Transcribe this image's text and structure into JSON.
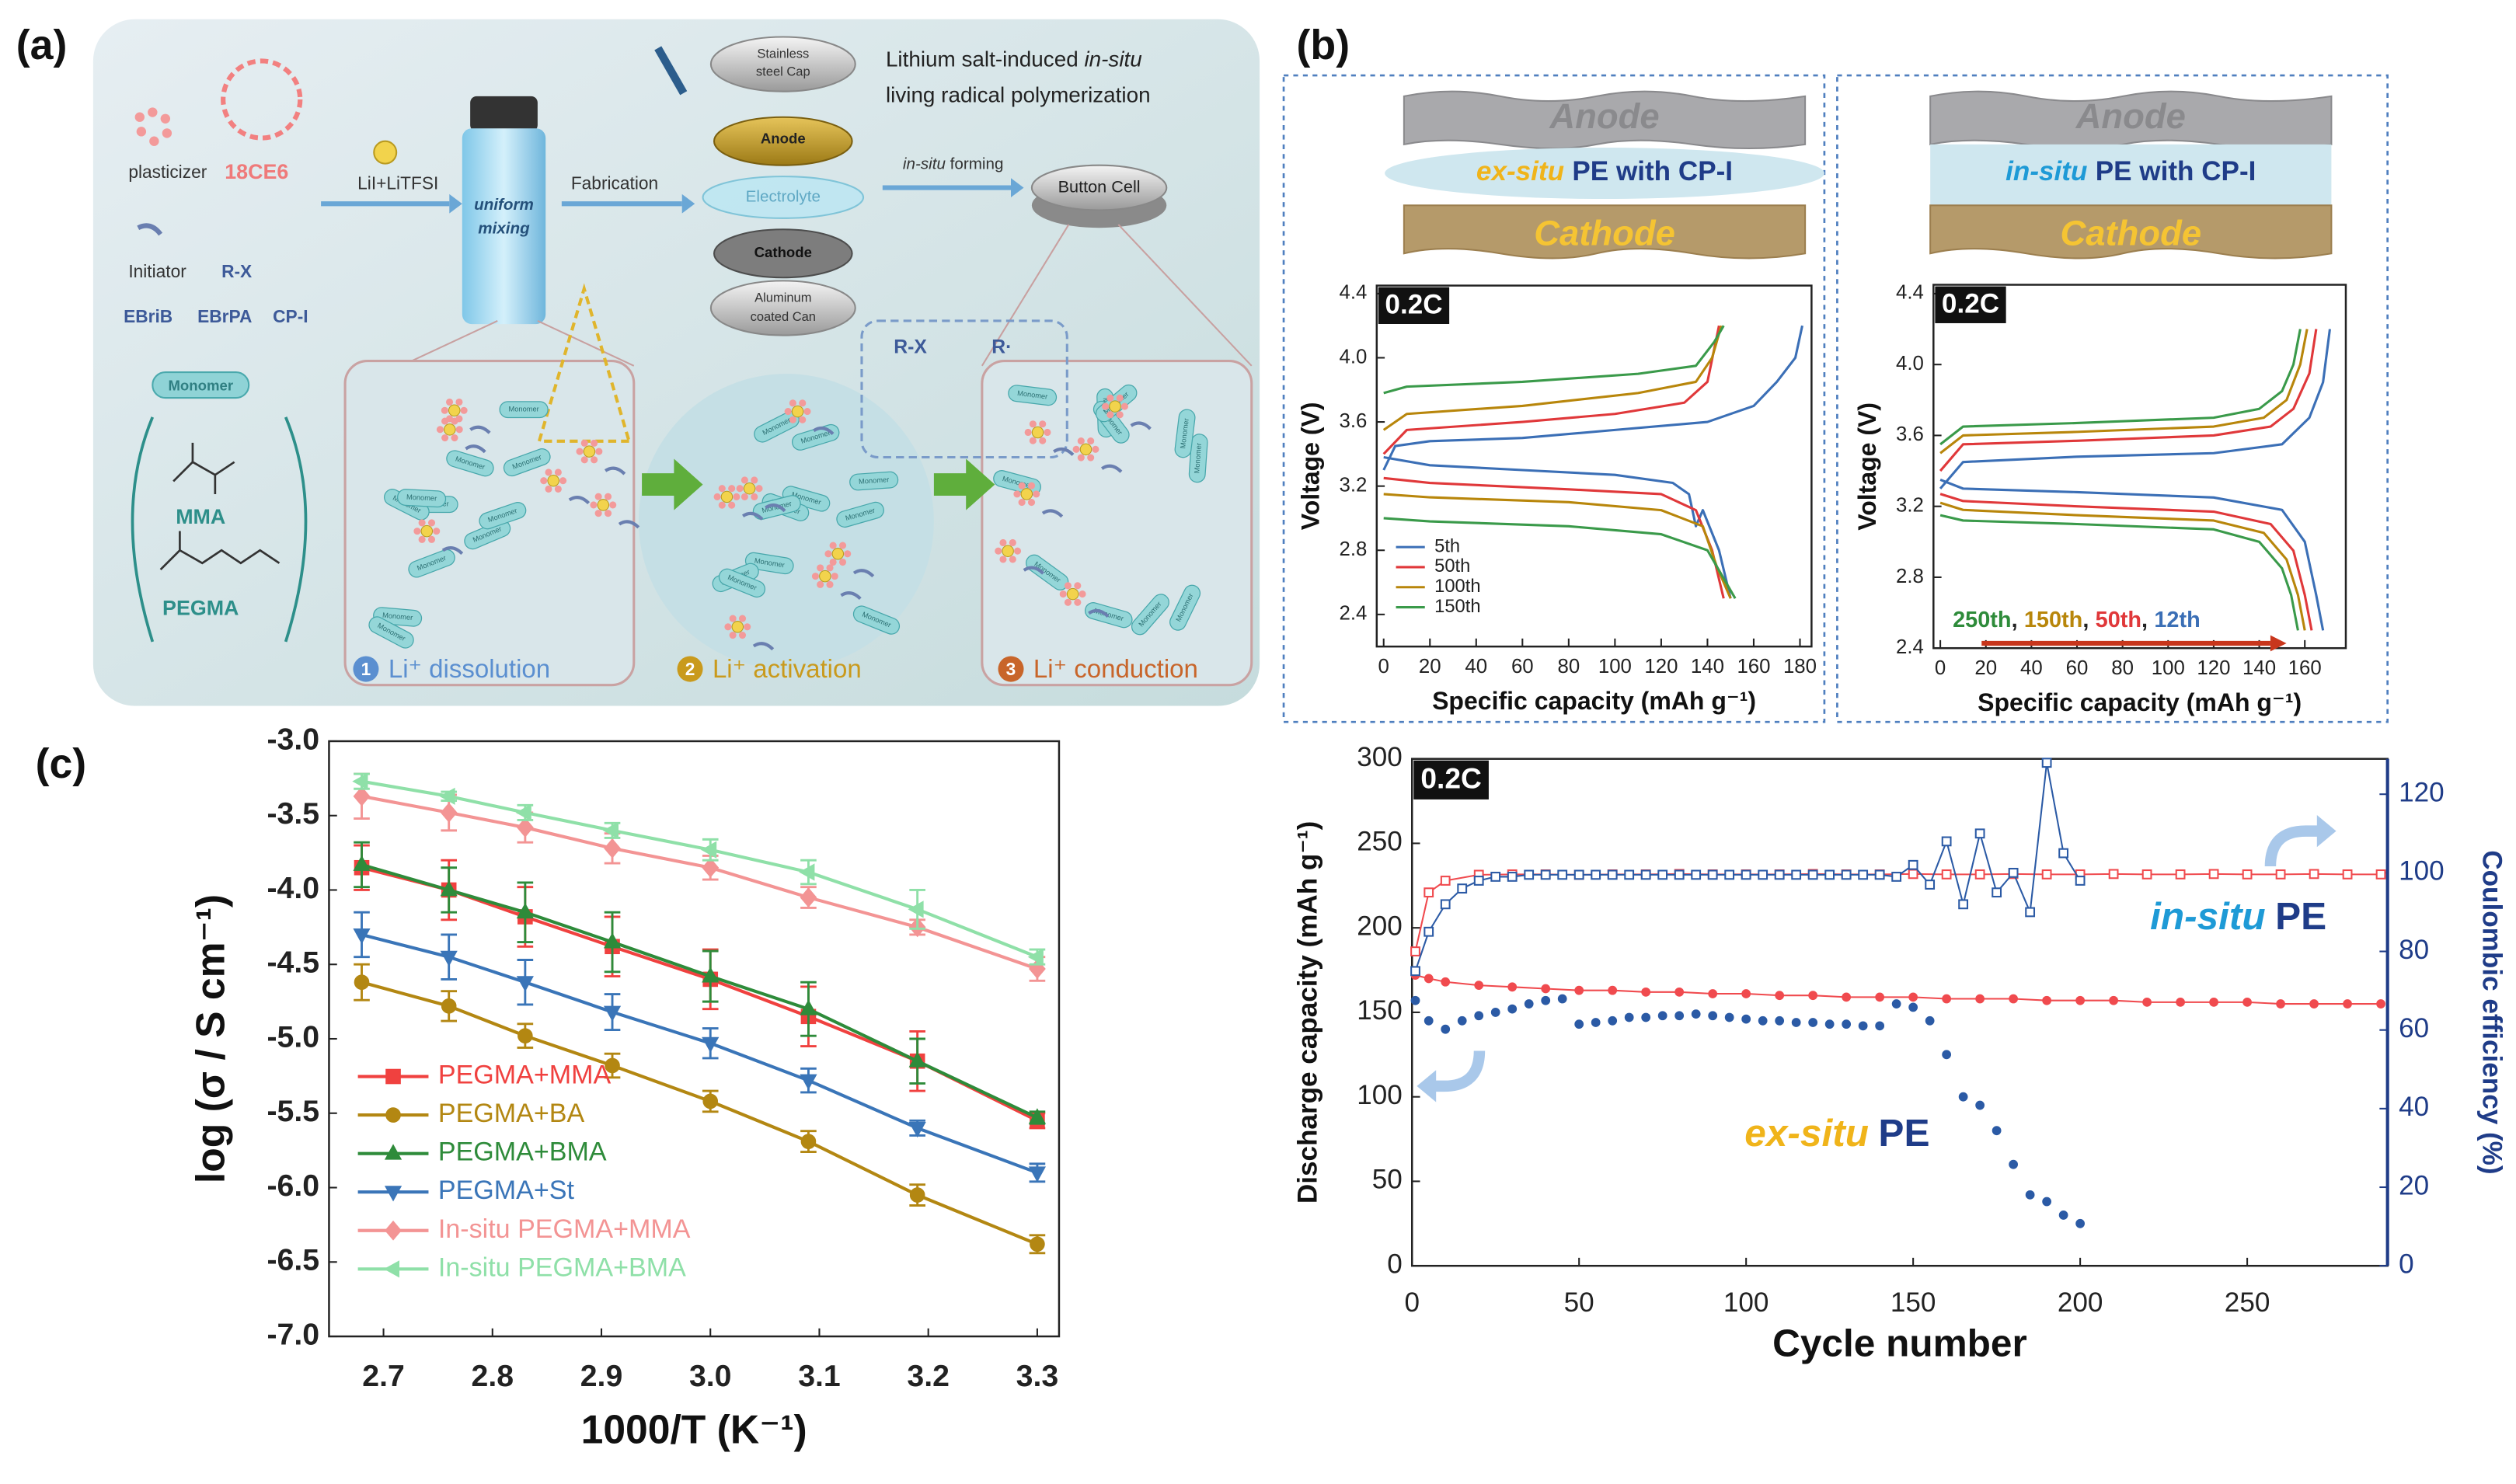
{
  "panel_labels": [
    "(a)",
    "(b)",
    "(c)"
  ],
  "schematic": {
    "plasticizer": "plasticizer",
    "crown_ether": "18CE6",
    "initiator": "Initiator",
    "initiator_formula": "R-X",
    "initiators": [
      "EBriB",
      "EBrPA",
      "CP-I"
    ],
    "monomer": "Monomer",
    "mma": "MMA",
    "pegma": "PEGMA",
    "lithium_salt": "LiI+LiTFSI",
    "mixing": [
      "uniform",
      "mixing"
    ],
    "fabrication": "Fabrication",
    "cap": [
      "Stainless",
      "steel Cap"
    ],
    "anode": "Anode",
    "electrolyte": "Electrolyte",
    "cathode": "Cathode",
    "can": [
      "Aluminum",
      "coated Can"
    ],
    "title": [
      "Lithium salt-induced",
      "in-situ",
      "living radical polymerization"
    ],
    "forming": [
      "in-situ",
      "forming"
    ],
    "button_cell": "Button Cell",
    "activation_rx": "R-X",
    "radical": "R·",
    "steps": [
      {
        "number": "1",
        "label": "Li⁺ dissolution"
      },
      {
        "number": "2",
        "label": "Li⁺ activation"
      },
      {
        "number": "3",
        "label": "Li⁺ conduction"
      }
    ]
  },
  "chart_data": [
    {
      "type": "line",
      "badge": "0.2C",
      "xlabel": "Specific capacity (mAh g⁻¹)",
      "ylabel": "Voltage (V)",
      "graphic": {
        "anode": "Anode",
        "electrolyte": [
          "ex-situ",
          "PE with CP-I"
        ],
        "cathode": "Cathode",
        "in_situ": false
      },
      "xlim": [
        -3,
        185
      ],
      "ylim": [
        2.2,
        4.45
      ],
      "xticks": [
        0,
        20,
        40,
        60,
        80,
        100,
        120,
        140,
        160,
        180
      ],
      "yticks": [
        2.4,
        2.8,
        3.2,
        3.6,
        {
          "value": 4,
          "label": "4.0"
        },
        4.4
      ],
      "legend": "lower left",
      "series": [
        {
          "name": "5th",
          "color": "#3b6fb6",
          "x": [
            0,
            5,
            20,
            60,
            100,
            140,
            160,
            170,
            178,
            181,
            null,
            0,
            20,
            60,
            100,
            125,
            132,
            135,
            138,
            145,
            150
          ],
          "values": [
            3.3,
            3.45,
            3.48,
            3.5,
            3.55,
            3.6,
            3.7,
            3.85,
            4.0,
            4.2,
            null,
            3.38,
            3.33,
            3.3,
            3.27,
            3.22,
            3.15,
            2.95,
            3.05,
            2.8,
            2.5
          ]
        },
        {
          "name": "50th",
          "color": "#e0383a",
          "x": [
            0,
            10,
            60,
            100,
            130,
            140,
            145,
            null,
            0,
            20,
            80,
            120,
            135,
            142,
            147
          ],
          "values": [
            3.4,
            3.55,
            3.6,
            3.65,
            3.72,
            3.85,
            4.2,
            null,
            3.25,
            3.22,
            3.18,
            3.15,
            3.05,
            2.8,
            2.5
          ]
        },
        {
          "name": "100th",
          "color": "#b8860b",
          "x": [
            0,
            10,
            60,
            110,
            135,
            142,
            146,
            null,
            0,
            20,
            80,
            120,
            138,
            144,
            150
          ],
          "values": [
            3.55,
            3.65,
            3.7,
            3.78,
            3.85,
            4.0,
            4.2,
            null,
            3.15,
            3.13,
            3.1,
            3.05,
            2.95,
            2.7,
            2.5
          ]
        },
        {
          "name": "150th",
          "color": "#3a9a4a",
          "x": [
            0,
            10,
            60,
            110,
            135,
            143,
            147,
            null,
            0,
            20,
            80,
            120,
            140,
            148,
            152
          ],
          "values": [
            3.78,
            3.82,
            3.85,
            3.9,
            3.95,
            4.1,
            4.2,
            null,
            3.0,
            2.98,
            2.95,
            2.9,
            2.8,
            2.6,
            2.5
          ]
        }
      ]
    },
    {
      "type": "line",
      "badge": "0.2C",
      "xlabel": "Specific capacity (mAh g⁻¹)",
      "ylabel": "Voltage (V)",
      "graphic": {
        "anode": "Anode",
        "electrolyte": [
          "in-situ",
          "PE with CP-I"
        ],
        "cathode": "Cathode",
        "in_situ": true
      },
      "xlim": [
        -3,
        178
      ],
      "ylim": [
        2.4,
        4.45
      ],
      "xticks": [
        0,
        20,
        40,
        60,
        80,
        100,
        120,
        140,
        160
      ],
      "yticks": [
        2.4,
        2.8,
        3.2,
        3.6,
        {
          "value": 4,
          "label": "4.0"
        },
        4.4
      ],
      "cycle_annotation": {
        "items": [
          {
            "text": "250th",
            "color": "#2e8b3a"
          },
          {
            "text": "150th",
            "color": "#b8860b"
          },
          {
            "text": "50th",
            "color": "#e0383a"
          },
          {
            "text": "12th",
            "color": "#3b6fb6"
          }
        ],
        "separator": ",",
        "arrow_color": "#c8361c"
      },
      "series": [
        {
          "color": "#3b6fb6",
          "x": [
            0,
            10,
            60,
            120,
            150,
            162,
            168,
            171,
            null,
            0,
            10,
            60,
            120,
            150,
            160,
            165,
            168
          ],
          "values": [
            3.3,
            3.45,
            3.48,
            3.5,
            3.55,
            3.7,
            3.9,
            4.2,
            null,
            3.35,
            3.3,
            3.28,
            3.25,
            3.18,
            3.0,
            2.7,
            2.5
          ]
        },
        {
          "color": "#e0383a",
          "x": [
            0,
            10,
            60,
            120,
            145,
            155,
            162,
            165,
            null,
            0,
            10,
            60,
            120,
            145,
            155,
            160,
            163
          ],
          "values": [
            3.4,
            3.55,
            3.57,
            3.6,
            3.65,
            3.75,
            3.95,
            4.2,
            null,
            3.27,
            3.23,
            3.2,
            3.17,
            3.1,
            2.95,
            2.7,
            2.5
          ]
        },
        {
          "color": "#b8860b",
          "x": [
            0,
            10,
            60,
            120,
            142,
            152,
            158,
            161,
            null,
            0,
            10,
            60,
            120,
            142,
            152,
            157,
            160
          ],
          "values": [
            3.5,
            3.6,
            3.62,
            3.65,
            3.7,
            3.8,
            4.0,
            4.2,
            null,
            3.22,
            3.18,
            3.15,
            3.12,
            3.05,
            2.9,
            2.7,
            2.5
          ]
        },
        {
          "color": "#3a9a4a",
          "x": [
            0,
            10,
            60,
            120,
            140,
            150,
            155,
            158,
            null,
            0,
            10,
            60,
            120,
            140,
            150,
            154,
            157
          ],
          "values": [
            3.55,
            3.65,
            3.67,
            3.7,
            3.75,
            3.85,
            4.0,
            4.2,
            null,
            3.15,
            3.12,
            3.1,
            3.07,
            3.0,
            2.85,
            2.7,
            2.5
          ]
        }
      ]
    },
    {
      "type": "line",
      "badge": "0.2C",
      "xlabel": "Cycle number",
      "ylabel": "Discharge capacity (mAh g⁻¹)",
      "y2label": "Coulombic efficiency (%)",
      "y2_color": "#1f3c88",
      "xlim": [
        0,
        292
      ],
      "ylim": [
        0,
        300
      ],
      "y2lim": [
        0,
        129
      ],
      "xticks": [
        0,
        50,
        100,
        150,
        200,
        250
      ],
      "yticks": [
        0,
        50,
        100,
        150,
        200,
        250,
        300
      ],
      "y2ticks": [
        0,
        20,
        40,
        60,
        80,
        100,
        120
      ],
      "annotations": [
        {
          "parts": [
            "in-situ",
            "PE"
          ],
          "colors": [
            "#1e9ad6",
            "#1f3c88"
          ]
        },
        {
          "parts": [
            "ex-situ",
            "PE"
          ],
          "colors": [
            "#f0b41a",
            "#1f3c88"
          ]
        }
      ],
      "series": [
        {
          "color": "#f04a4e",
          "marker": "circle",
          "filled": true,
          "line": true,
          "x": [
            1,
            5,
            10,
            20,
            30,
            40,
            50,
            60,
            70,
            80,
            90,
            100,
            110,
            120,
            130,
            140,
            150,
            160,
            170,
            180,
            190,
            200,
            210,
            220,
            230,
            240,
            250,
            260,
            270,
            280,
            290
          ],
          "values": [
            172,
            170,
            168,
            166,
            165,
            164,
            163,
            163,
            162,
            162,
            161,
            161,
            160,
            160,
            159,
            159,
            159,
            158,
            158,
            158,
            157,
            157,
            157,
            156,
            156,
            156,
            156,
            155,
            155,
            155,
            155
          ]
        },
        {
          "color": "#f04a4e",
          "marker": "square",
          "filled": false,
          "line": true,
          "axis": "y2",
          "x": [
            1,
            5,
            10,
            20,
            30,
            40,
            50,
            60,
            70,
            80,
            90,
            100,
            110,
            120,
            130,
            140,
            150,
            160,
            170,
            180,
            190,
            200,
            210,
            220,
            230,
            240,
            250,
            260,
            270,
            280,
            290
          ],
          "values": [
            80,
            95,
            98,
            99.5,
            99.6,
            99.6,
            99.5,
            99.6,
            99.6,
            99.7,
            99.6,
            99.6,
            99.6,
            99.7,
            99.6,
            99.6,
            99.7,
            99.6,
            99.6,
            99.7,
            99.6,
            99.6,
            99.7,
            99.6,
            99.6,
            99.7,
            99.6,
            99.6,
            99.7,
            99.6,
            99.6
          ]
        },
        {
          "color": "#2b5aa5",
          "marker": "circle",
          "filled": true,
          "line": false,
          "x": [
            1,
            5,
            10,
            15,
            20,
            25,
            30,
            35,
            40,
            45,
            50,
            55,
            60,
            65,
            70,
            75,
            80,
            85,
            90,
            95,
            100,
            105,
            110,
            115,
            120,
            125,
            130,
            135,
            140,
            145,
            150,
            155,
            160,
            165,
            170,
            175,
            180,
            185,
            190,
            195,
            200
          ],
          "values": [
            157,
            145,
            140,
            145,
            148,
            150,
            152,
            155,
            157,
            158,
            143,
            144,
            145,
            147,
            147,
            148,
            148,
            149,
            148,
            147,
            146,
            145,
            145,
            144,
            144,
            143,
            143,
            142,
            142,
            155,
            153,
            145,
            125,
            100,
            95,
            80,
            60,
            42,
            38,
            30,
            25
          ]
        },
        {
          "color": "#2b5aa5",
          "marker": "square",
          "filled": false,
          "line": true,
          "axis": "y2",
          "x": [
            1,
            5,
            10,
            15,
            20,
            25,
            30,
            35,
            40,
            45,
            50,
            55,
            60,
            65,
            70,
            75,
            80,
            85,
            90,
            95,
            100,
            105,
            110,
            115,
            120,
            125,
            130,
            135,
            140,
            145,
            150,
            155,
            160,
            165,
            170,
            175,
            180,
            185,
            190,
            195,
            200
          ],
          "values": [
            75,
            85,
            92,
            96,
            98,
            99,
            99,
            99.5,
            99.5,
            99.5,
            99.5,
            99.5,
            99.5,
            99.5,
            99.5,
            99.5,
            99.5,
            99.5,
            99.5,
            99.5,
            99.5,
            99.5,
            99.5,
            99.5,
            99.5,
            99.5,
            99.5,
            99.5,
            99.5,
            99,
            102,
            97,
            108,
            92,
            110,
            95,
            100,
            90,
            128,
            105,
            98
          ]
        }
      ]
    },
    {
      "type": "line",
      "xlabel": "1000/T (K⁻¹)",
      "ylabel": "log (σ / S cm⁻¹)",
      "xlim": [
        2.65,
        3.32
      ],
      "ylim": [
        -7.0,
        -3.0
      ],
      "xticks": [
        2.7,
        2.8,
        2.9,
        {
          "value": 3,
          "label": "3.0"
        },
        3.1,
        3.2,
        3.3
      ],
      "yticks": [
        {
          "value": -3,
          "label": "-3.0"
        },
        -3.5,
        {
          "value": -4,
          "label": "-4.0"
        },
        -4.5,
        {
          "value": -5,
          "label": "-5.0"
        },
        -5.5,
        {
          "value": -6,
          "label": "-6.0"
        },
        -6.5,
        {
          "value": -7,
          "label": "-7.0"
        }
      ],
      "legend": "lower left",
      "x": [
        2.68,
        2.76,
        2.83,
        2.91,
        3.0,
        3.09,
        3.19,
        3.3
      ],
      "series": [
        {
          "name": "PEGMA+MMA",
          "color": "#f0413f",
          "marker": "square",
          "filled": true,
          "line": true,
          "values": [
            -3.85,
            -4.0,
            -4.18,
            -4.38,
            -4.6,
            -4.85,
            -5.15,
            -5.55
          ],
          "errors": [
            0.15,
            0.2,
            0.2,
            0.2,
            0.2,
            0.2,
            0.2,
            0.05
          ]
        },
        {
          "name": "PEGMA+BA",
          "color": "#b38712",
          "marker": "circle",
          "filled": true,
          "line": true,
          "values": [
            -4.62,
            -4.78,
            -4.98,
            -5.18,
            -5.42,
            -5.69,
            -6.05,
            -6.38
          ],
          "errors": [
            0.12,
            0.1,
            0.08,
            0.08,
            0.07,
            0.07,
            0.07,
            0.06
          ]
        },
        {
          "name": "PEGMA+BMA",
          "color": "#2e8b3a",
          "marker": "triangle",
          "filled": true,
          "line": true,
          "values": [
            -3.83,
            -4.0,
            -4.15,
            -4.35,
            -4.58,
            -4.8,
            -5.15,
            -5.53
          ],
          "errors": [
            0.15,
            0.15,
            0.2,
            0.2,
            0.17,
            0.18,
            0.15,
            0.04
          ]
        },
        {
          "name": "PEGMA+St",
          "color": "#3a75b8",
          "marker": "triangle-down",
          "filled": true,
          "line": true,
          "values": [
            -4.3,
            -4.45,
            -4.62,
            -4.82,
            -5.03,
            -5.28,
            -5.6,
            -5.9
          ],
          "errors": [
            0.15,
            0.15,
            0.15,
            0.12,
            0.1,
            0.08,
            0.05,
            0.06
          ]
        },
        {
          "name": "In-situ PEGMA+MMA",
          "color": "#f39494",
          "marker": "diamond",
          "filled": true,
          "line": true,
          "values": [
            -3.37,
            -3.48,
            -3.58,
            -3.72,
            -3.85,
            -4.05,
            -4.25,
            -4.53
          ],
          "errors": [
            0.15,
            0.12,
            0.1,
            0.1,
            0.08,
            0.07,
            0.05,
            0.08
          ]
        },
        {
          "name": "In-situ PEGMA+BMA",
          "color": "#8fe0a8",
          "marker": "triangle-left",
          "filled": true,
          "line": true,
          "values": [
            -3.27,
            -3.37,
            -3.48,
            -3.6,
            -3.73,
            -3.88,
            -4.13,
            -4.45
          ],
          "errors": [
            0.05,
            0.03,
            0.05,
            0.05,
            0.07,
            0.08,
            0.13,
            0.05
          ]
        }
      ]
    }
  ]
}
